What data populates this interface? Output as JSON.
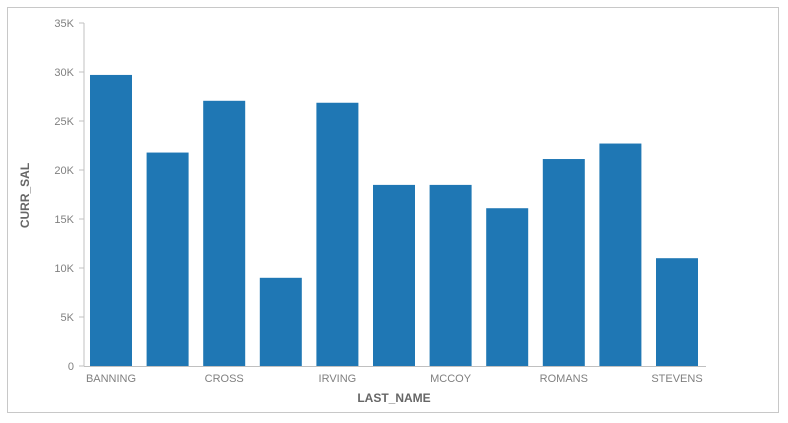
{
  "chart_data": {
    "type": "bar",
    "title": "",
    "xlabel": "LAST_NAME",
    "ylabel": "CURR_SAL",
    "categories": [
      "BANNING",
      "",
      "CROSS",
      "",
      "IRVING",
      "",
      "MCCOY",
      "",
      "ROMANS",
      "",
      "STEVENS"
    ],
    "x_tick_labels": [
      "BANNING",
      "CROSS",
      "IRVING",
      "MCCOY",
      "ROMANS",
      "STEVENS"
    ],
    "values": [
      29700,
      21780,
      27062,
      9000,
      26862,
      18480,
      18480,
      16100,
      21120,
      22700,
      11000
    ],
    "ylim": [
      0,
      35000
    ],
    "y_ticks": [
      0,
      5000,
      10000,
      15000,
      20000,
      25000,
      30000,
      35000
    ],
    "y_tick_labels": [
      "0",
      "5K",
      "10K",
      "15K",
      "20K",
      "25K",
      "30K",
      "35K"
    ],
    "grid": false,
    "legend": "none",
    "colors": {
      "bar": "#1f77b4",
      "axis": "#c0c0c0"
    }
  }
}
